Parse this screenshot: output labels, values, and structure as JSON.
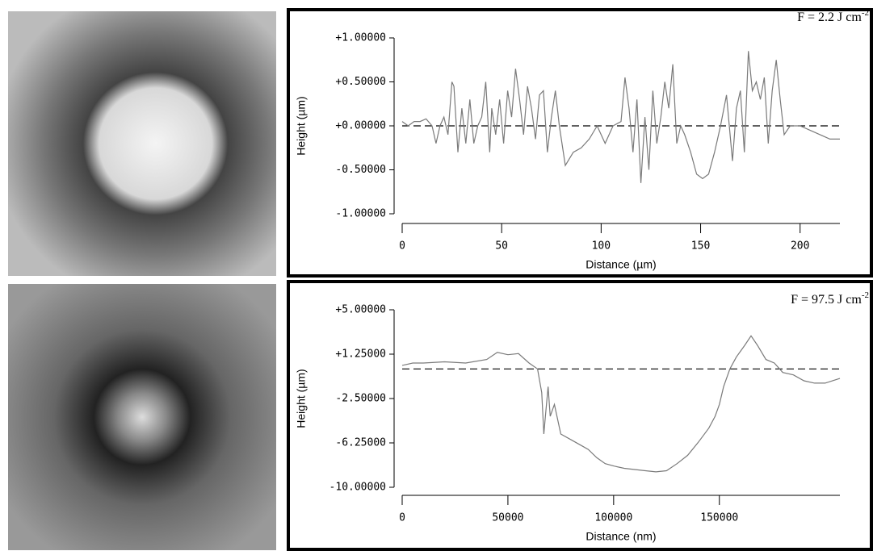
{
  "chart_data": [
    {
      "type": "line",
      "annotation": "F = 2.2 J cm",
      "annotation_sup": "-2",
      "xlabel": "Distance (µm)",
      "ylabel": "Height (µm)",
      "color": "#7a7a7a",
      "hline": 0,
      "xlim": [
        0,
        220
      ],
      "xticks": [
        0,
        50,
        100,
        150,
        200
      ],
      "ylim": [
        -1,
        1
      ],
      "yticks": [
        {
          "value": 1,
          "label": "+1.00000"
        },
        {
          "value": 0.5,
          "label": "+0.50000"
        },
        {
          "value": 0,
          "label": "+0.00000"
        },
        {
          "value": -0.5,
          "label": "-0.50000"
        },
        {
          "value": -1,
          "label": "-1.00000"
        }
      ],
      "x": [
        0,
        3,
        6,
        9,
        12,
        15,
        17,
        19,
        21,
        23,
        25,
        26,
        28,
        30,
        32,
        34,
        36,
        38,
        40,
        42,
        44,
        45,
        47,
        49,
        51,
        53,
        55,
        57,
        59,
        61,
        63,
        65,
        67,
        69,
        71,
        73,
        75,
        77,
        79,
        82,
        86,
        90,
        94,
        98,
        102,
        106,
        110,
        112,
        114,
        116,
        118,
        120,
        122,
        124,
        126,
        128,
        130,
        132,
        134,
        136,
        138,
        140,
        142,
        145,
        148,
        151,
        154,
        157,
        160,
        163,
        166,
        168,
        170,
        172,
        174,
        176,
        178,
        180,
        182,
        184,
        186,
        188,
        190,
        192,
        195,
        200,
        205,
        210,
        215,
        220
      ],
      "values": [
        0.05,
        0.0,
        0.05,
        0.05,
        0.08,
        0.0,
        -0.2,
        0.0,
        0.1,
        -0.1,
        0.5,
        0.45,
        -0.3,
        0.2,
        -0.2,
        0.3,
        -0.2,
        0.0,
        0.1,
        0.5,
        -0.3,
        0.2,
        -0.1,
        0.3,
        -0.2,
        0.4,
        0.1,
        0.65,
        0.3,
        -0.1,
        0.45,
        0.2,
        -0.15,
        0.35,
        0.4,
        -0.3,
        0.1,
        0.4,
        0.0,
        -0.45,
        -0.3,
        -0.25,
        -0.15,
        0.0,
        -0.2,
        0.0,
        0.05,
        0.55,
        0.2,
        -0.3,
        0.3,
        -0.65,
        0.1,
        -0.5,
        0.4,
        -0.2,
        0.1,
        0.5,
        0.2,
        0.7,
        -0.2,
        0.0,
        -0.1,
        -0.3,
        -0.55,
        -0.6,
        -0.55,
        -0.3,
        0.0,
        0.35,
        -0.4,
        0.2,
        0.4,
        -0.3,
        0.85,
        0.4,
        0.5,
        0.3,
        0.55,
        -0.2,
        0.4,
        0.75,
        0.3,
        -0.1,
        0.0,
        0.0,
        -0.05,
        -0.1,
        -0.15,
        -0.15
      ]
    },
    {
      "type": "line",
      "annotation": "F = 97.5 J cm",
      "annotation_sup": "-2",
      "xlabel": "Distance (nm)",
      "ylabel": "Height (µm)",
      "color": "#7a7a7a",
      "hline": 0,
      "xlim": [
        0,
        207000
      ],
      "xticks": [
        0,
        50000,
        100000,
        150000
      ],
      "ylim": [
        -10,
        5
      ],
      "yticks": [
        {
          "value": 5,
          "label": "+5.00000"
        },
        {
          "value": 1.25,
          "label": "+1.25000"
        },
        {
          "value": -2.5,
          "label": "-2.50000"
        },
        {
          "value": -6.25,
          "label": "-6.25000"
        },
        {
          "value": -10,
          "label": "-10.00000"
        }
      ],
      "x": [
        0,
        5000,
        10000,
        20000,
        30000,
        40000,
        45000,
        50000,
        55000,
        60000,
        64000,
        66000,
        67000,
        68000,
        69000,
        70000,
        72000,
        75000,
        80000,
        85000,
        88000,
        92000,
        96000,
        100000,
        105000,
        110000,
        115000,
        120000,
        125000,
        130000,
        135000,
        140000,
        145000,
        148000,
        150000,
        152000,
        155000,
        158000,
        162000,
        165000,
        168000,
        172000,
        176000,
        180000,
        185000,
        190000,
        195000,
        200000,
        207000
      ],
      "values": [
        0.3,
        0.5,
        0.5,
        0.6,
        0.5,
        0.8,
        1.4,
        1.2,
        1.3,
        0.5,
        0.0,
        -2.0,
        -5.5,
        -3.5,
        -1.5,
        -4.0,
        -3.0,
        -5.5,
        -6.0,
        -6.5,
        -6.8,
        -7.5,
        -8.0,
        -8.2,
        -8.4,
        -8.5,
        -8.6,
        -8.7,
        -8.6,
        -8.0,
        -7.3,
        -6.2,
        -5.0,
        -4.0,
        -3.0,
        -1.5,
        0.0,
        1.0,
        2.0,
        2.8,
        2.0,
        0.8,
        0.5,
        -0.3,
        -0.5,
        -1.0,
        -1.2,
        -1.2,
        -0.8
      ]
    }
  ]
}
